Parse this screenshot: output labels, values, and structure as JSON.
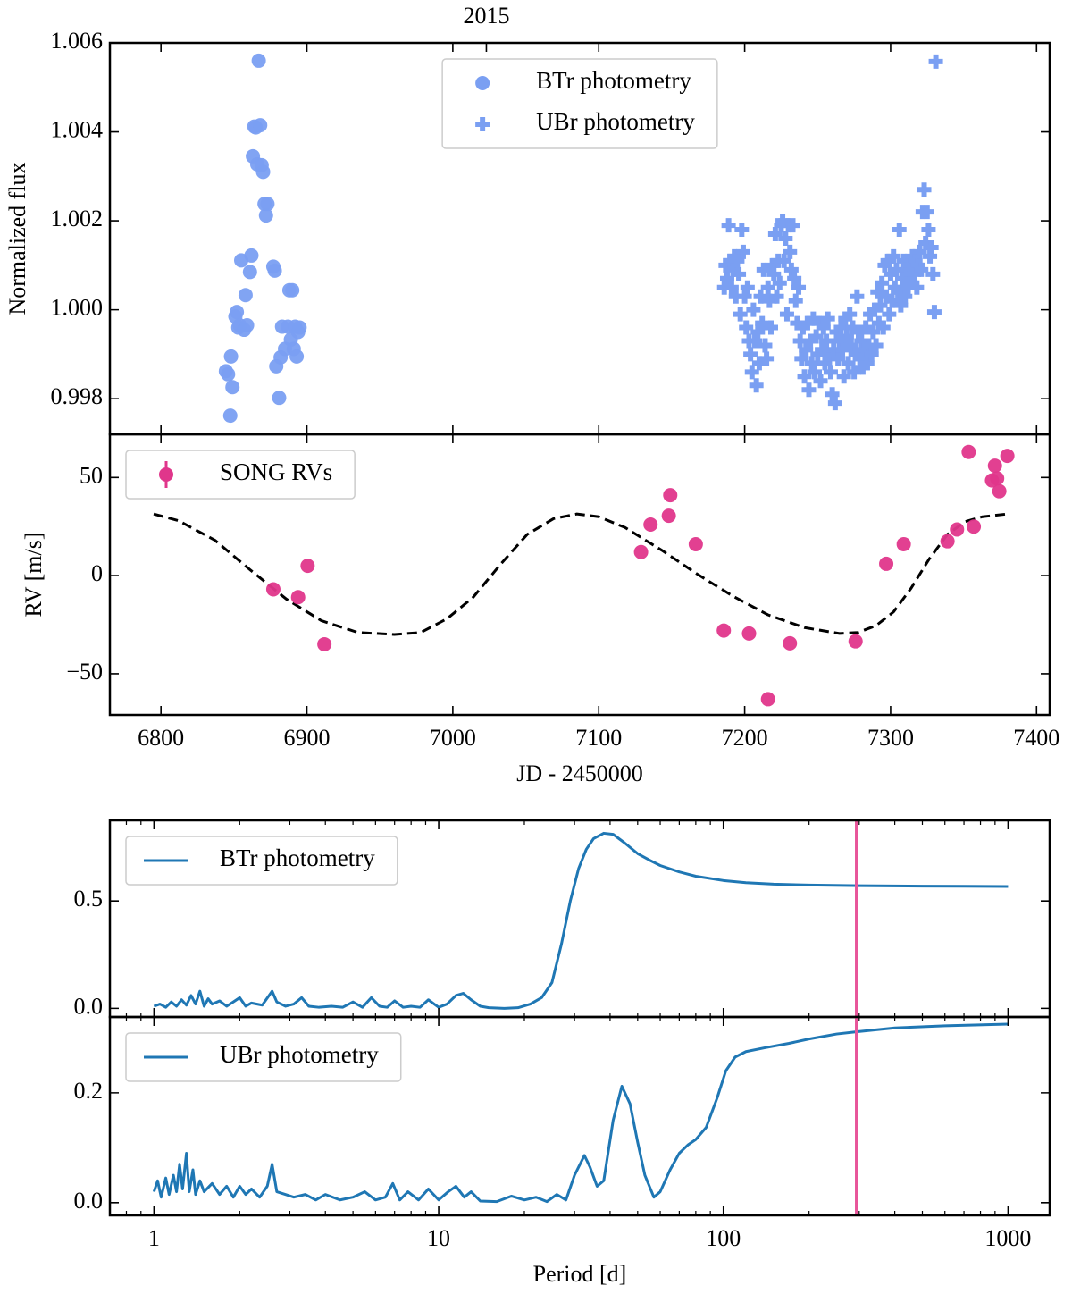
{
  "chart_data": [
    {
      "type": "scatter",
      "xlim": [
        6765,
        7409
      ],
      "ylim": [
        0.9972,
        1.006
      ],
      "xticks": [
        6800,
        6900,
        7000,
        7100,
        7200,
        7300,
        7400
      ],
      "xticklabels": false,
      "x2ticks": [
        {
          "value": 7023,
          "label": "2015"
        }
      ],
      "yticks": [
        1.006,
        1.004,
        1.002,
        {
          "value": 1,
          "label": "1.000"
        },
        0.998
      ],
      "ylabel": "Normalized flux",
      "legend": "upper center",
      "series": [
        {
          "name": "BTr photometry",
          "color": "#7a9ff2",
          "marker": "o",
          "x": [
            6844.5,
            6846,
            6847.5,
            6848,
            6849,
            6851,
            6852,
            6853,
            6854,
            6855,
            6857,
            6858,
            6859,
            6861,
            6862,
            6863,
            6864,
            6865,
            6866,
            6867,
            6868,
            6869,
            6870,
            6871,
            6872,
            6873,
            6877,
            6878,
            6879,
            6881,
            6882,
            6883,
            6885,
            6887,
            6888,
            6889,
            6890,
            6891,
            6892,
            6893,
            6894,
            6895
          ],
          "values": [
            0.99862,
            0.99855,
            0.99762,
            0.99895,
            0.99826,
            0.99985,
            0.99995,
            0.9996,
            0.99965,
            1.00111,
            0.99955,
            1.00033,
            0.99965,
            1.00085,
            1.00122,
            1.00345,
            1.00412,
            1.0041,
            1.00327,
            1.0056,
            1.00415,
            1.00325,
            1.0031,
            1.00238,
            1.00212,
            1.00238,
            1.00097,
            1.00088,
            0.99873,
            0.99802,
            0.99893,
            0.99962,
            0.99912,
            0.99962,
            1.00044,
            0.99933,
            1.00044,
            0.99912,
            0.99962,
            0.99895,
            0.9995,
            0.9996
          ]
        },
        {
          "name": "UBr photometry",
          "color": "#7a9ff2",
          "marker": "P",
          "x": [
            7186,
            7187,
            7188,
            7189,
            7190,
            7191,
            7192,
            7193,
            7194,
            7195,
            7196,
            7197,
            7198,
            7199,
            7200,
            7201,
            7202,
            7203,
            7204,
            7205,
            7206,
            7207,
            7208,
            7209,
            7210,
            7211,
            7212,
            7213,
            7214,
            7215,
            7216,
            7217,
            7218,
            7219,
            7220,
            7221,
            7222,
            7223,
            7224,
            7225,
            7226,
            7227,
            7228,
            7229,
            7230,
            7231,
            7232,
            7233,
            7234,
            7235,
            7236,
            7237,
            7238,
            7239,
            7240,
            7241,
            7242,
            7243,
            7244,
            7245,
            7246,
            7247,
            7248,
            7249,
            7250,
            7251,
            7252,
            7253,
            7254,
            7255,
            7256,
            7257,
            7258,
            7259,
            7260,
            7261,
            7262,
            7263,
            7264,
            7265,
            7266,
            7267,
            7268,
            7269,
            7270,
            7271,
            7272,
            7273,
            7274,
            7275,
            7276,
            7277,
            7278,
            7279,
            7280,
            7281,
            7282,
            7283,
            7284,
            7285,
            7286,
            7287,
            7288,
            7289,
            7290,
            7291,
            7292,
            7293,
            7294,
            7295,
            7296,
            7297,
            7298,
            7299,
            7300,
            7301,
            7302,
            7303,
            7304,
            7305,
            7306,
            7307,
            7308,
            7309,
            7310,
            7311,
            7312,
            7313,
            7314,
            7315,
            7316,
            7317,
            7318,
            7319,
            7320,
            7321,
            7322,
            7323,
            7324,
            7325,
            7326,
            7327,
            7328,
            7329,
            7330,
            7331
          ],
          "values": [
            1.0005,
            1.001,
            1.0007,
            1.0019,
            1.0011,
            1.0005,
            1.0009,
            1.0012,
            1.0003,
            1.0011,
            1.0008,
            0.9999,
            1.0018,
            1.0013,
            1.0003,
            0.9996,
            1.0005,
            0.9993,
            0.999,
            0.9986,
            1.0,
            0.9993,
            0.9983,
            0.9995,
            0.9988,
            1.0003,
            0.9997,
            1.0009,
            0.9992,
            0.9989,
            1.0005,
            1.0002,
            0.9996,
            1.001,
            1.0008,
            1.0017,
            1.0003,
            1.0011,
            1.0006,
            1.0019,
            1.002,
            1.0011,
            1.0016,
            0.9999,
            1.0019,
            1.0013,
            1.0009,
            1.0019,
            1.0007,
            1.0002,
            0.9997,
            1.0005,
            0.9993,
            0.9989,
            0.9996,
            0.9985,
            0.9991,
            0.9997,
            0.9982,
            0.9993,
            0.9988,
            0.9998,
            0.9986,
            0.9994,
            0.999,
            0.9997,
            0.9984,
            0.9991,
            0.9996,
            0.9988,
            0.9993,
            0.9998,
            0.999,
            0.9986,
            0.9981,
            0.9991,
            0.9979,
            0.9995,
            0.9989,
            0.9993,
            0.9996,
            0.9991,
            0.9985,
            0.9998,
            0.9994,
            0.9988,
            0.9999,
            0.9992,
            0.9996,
            0.9986,
            0.999,
            1.0003,
            0.9995,
            0.9989,
            0.9993,
            0.9987,
            0.9991,
            0.9996,
            0.9988,
            0.9992,
            0.9999,
            0.999,
            0.9995,
            1.0,
            0.9992,
            1.0004,
            0.9997,
            1.0001,
            1.0006,
            0.9996,
            1.001,
            1.0003,
            1.0011,
            0.9999,
            1.0008,
            1.0002,
            1.0012,
            1.0005,
            1.0009,
            1.0004,
            1.0018,
            1.0001,
            1.0007,
            1.0011,
            1.0003,
            1.0009,
            1.0005,
            1.001,
            1.0006,
            1.0012,
            1.0008,
            1.0011,
            1.0005,
            1.001,
            1.0013,
            1.0009,
            1.0022,
            1.0027,
            1.0015,
            1.0022,
            1.0018,
            1.0012,
            1.0014,
            1.0008,
            0.99995,
            1.00558
          ]
        }
      ]
    },
    {
      "type": "scatter",
      "xlim": [
        6765,
        7409
      ],
      "ylim": [
        -71,
        72
      ],
      "xticks": [
        6800,
        6900,
        7000,
        7100,
        7200,
        7300,
        7400
      ],
      "yticks": [
        50,
        0,
        {
          "value": -50,
          "label": "−50"
        }
      ],
      "ylabel": "RV [m/s]",
      "xlabel": "JD - 2450000",
      "legend": "upper left",
      "series": [
        {
          "color": "#000000",
          "marker": "dashed",
          "x": [
            6795,
            6812,
            6837,
            6861,
            6886,
            6910,
            6935,
            6960,
            6978,
            6996,
            7014,
            7033,
            7051,
            7069,
            7085,
            7100,
            7118,
            7143,
            7167,
            7192,
            7216,
            7241,
            7265,
            7277.5,
            7290,
            7302,
            7314,
            7326.5,
            7339,
            7351,
            7363,
            7380
          ],
          "values": [
            31.4,
            28,
            18,
            3,
            -12,
            -23,
            -29,
            -30,
            -29,
            -22,
            -11,
            6,
            21,
            29,
            31.4,
            30,
            24.5,
            13,
            1,
            -10.5,
            -20,
            -26.5,
            -29.5,
            -29,
            -25.5,
            -18.5,
            -6.5,
            8.5,
            21,
            27.5,
            30,
            31.4
          ]
        },
        {
          "name": "SONG RVs",
          "color": "#e0368b",
          "marker": "o",
          "legend_errorbar": true,
          "x": [
            6877,
            6894,
            6900.5,
            6912,
            7129,
            7135.5,
            7148,
            7149,
            7166.5,
            7185.7,
            7203,
            7216,
            7231,
            7276,
            7297,
            7309,
            7339,
            7345.5,
            7357,
            7353.5,
            7371.5,
            7369.5,
            7373,
            7374.5,
            7380
          ],
          "values": [
            -7,
            -11,
            5,
            -35,
            12,
            26,
            30.5,
            41,
            16,
            -28,
            -29.5,
            -63,
            -34.5,
            -33.5,
            6,
            16,
            17.5,
            23.5,
            25,
            63,
            56,
            48.5,
            49.5,
            43,
            61
          ]
        }
      ]
    },
    {
      "type": "line",
      "xlog": true,
      "xlim": [
        0.7,
        1400
      ],
      "ylim": [
        -0.04,
        0.875
      ],
      "xticks": [
        1,
        10,
        100,
        1000
      ],
      "xticklabels": false,
      "xminor": [
        0.8,
        0.9,
        2,
        3,
        4,
        5,
        6,
        7,
        8,
        9,
        20,
        30,
        40,
        50,
        60,
        70,
        80,
        90,
        200,
        300,
        400,
        500,
        600,
        700,
        800,
        900
      ],
      "yticks": [
        0.5,
        {
          "value": 0,
          "label": "0.0"
        }
      ],
      "legend": "upper left",
      "vline": {
        "x": 293,
        "color": "#e8559a"
      },
      "series": [
        {
          "name": "BTr photometry",
          "color": "#1f77b4",
          "marker": "line",
          "x": [
            1,
            1.05,
            1.1,
            1.15,
            1.2,
            1.25,
            1.3,
            1.35,
            1.4,
            1.45,
            1.5,
            1.55,
            1.6,
            1.7,
            1.8,
            1.9,
            2,
            2.1,
            2.2,
            2.4,
            2.6,
            2.7,
            2.9,
            3.1,
            3.3,
            3.5,
            3.8,
            4.2,
            4.6,
            5,
            5.4,
            5.8,
            6.2,
            6.6,
            7,
            7.5,
            8,
            8.6,
            9.2,
            10,
            10.7,
            11.5,
            12.2,
            13,
            14,
            15,
            17,
            19,
            21,
            23,
            25,
            27,
            29,
            31,
            33,
            35,
            38,
            41,
            45,
            50,
            55,
            60,
            70,
            80,
            100,
            120,
            150,
            200,
            300,
            500,
            700,
            1000
          ],
          "values": [
            0.01,
            0.02,
            0.005,
            0.03,
            0.01,
            0.04,
            0.015,
            0.06,
            0.02,
            0.08,
            0.01,
            0.045,
            0.02,
            0.035,
            0.01,
            0.03,
            0.05,
            0.01,
            0.025,
            0.015,
            0.08,
            0.03,
            0.01,
            0.02,
            0.05,
            0.01,
            0.005,
            0.01,
            0.005,
            0.03,
            0.005,
            0.05,
            0.01,
            0.005,
            0.035,
            0.005,
            0.01,
            0.005,
            0.04,
            0.005,
            0.02,
            0.06,
            0.07,
            0.04,
            0.01,
            0.003,
            0,
            0.003,
            0.02,
            0.05,
            0.12,
            0.3,
            0.5,
            0.65,
            0.74,
            0.79,
            0.815,
            0.81,
            0.77,
            0.72,
            0.69,
            0.665,
            0.635,
            0.615,
            0.595,
            0.585,
            0.578,
            0.574,
            0.571,
            0.569,
            0.568,
            0.567
          ]
        }
      ]
    },
    {
      "type": "line",
      "xlog": true,
      "xlim": [
        0.7,
        1400
      ],
      "ylim": [
        -0.023,
        0.338
      ],
      "xticks": [
        1,
        10,
        100,
        1000
      ],
      "xminor": [
        0.8,
        0.9,
        2,
        3,
        4,
        5,
        6,
        7,
        8,
        9,
        20,
        30,
        40,
        50,
        60,
        70,
        80,
        90,
        200,
        300,
        400,
        500,
        600,
        700,
        800,
        900
      ],
      "yticks": [
        0.2,
        {
          "value": 0,
          "label": "0.0"
        }
      ],
      "xlabel": "Period [d]",
      "legend": "upper left",
      "vline": {
        "x": 293,
        "color": "#e8559a"
      },
      "series": [
        {
          "name": "UBr photometry",
          "color": "#1f77b4",
          "marker": "line",
          "x": [
            1,
            1.03,
            1.06,
            1.1,
            1.13,
            1.17,
            1.2,
            1.23,
            1.26,
            1.3,
            1.33,
            1.37,
            1.4,
            1.45,
            1.5,
            1.6,
            1.7,
            1.8,
            1.9,
            2,
            2.1,
            2.2,
            2.35,
            2.5,
            2.6,
            2.7,
            2.9,
            3.1,
            3.4,
            3.7,
            4,
            4.5,
            5,
            5.5,
            6,
            6.5,
            6.9,
            7.3,
            7.8,
            8.5,
            9.2,
            10,
            10.8,
            11.5,
            12.3,
            13,
            14,
            16,
            18,
            20,
            22,
            24,
            26,
            28,
            30,
            32.5,
            34,
            36,
            38,
            41,
            44,
            47,
            50,
            53,
            57,
            60,
            65,
            70,
            75,
            80,
            87,
            95,
            102,
            110,
            120,
            140,
            170,
            200,
            250,
            293,
            400,
            600,
            1000
          ],
          "values": [
            0.02,
            0.04,
            0.01,
            0.045,
            0.015,
            0.05,
            0.02,
            0.07,
            0.025,
            0.09,
            0.02,
            0.06,
            0.015,
            0.04,
            0.02,
            0.035,
            0.015,
            0.03,
            0.01,
            0.03,
            0.015,
            0.025,
            0.01,
            0.03,
            0.07,
            0.02,
            0.015,
            0.01,
            0.015,
            0.005,
            0.015,
            0.005,
            0.01,
            0.02,
            0.005,
            0.01,
            0.035,
            0.005,
            0.02,
            0.005,
            0.025,
            0.005,
            0.02,
            0.03,
            0.01,
            0.02,
            0.003,
            0.002,
            0.012,
            0.005,
            0.01,
            0.002,
            0.015,
            0.005,
            0.05,
            0.086,
            0.065,
            0.03,
            0.04,
            0.15,
            0.212,
            0.18,
            0.11,
            0.05,
            0.01,
            0.02,
            0.06,
            0.09,
            0.105,
            0.115,
            0.137,
            0.19,
            0.24,
            0.265,
            0.275,
            0.282,
            0.29,
            0.298,
            0.307,
            0.311,
            0.318,
            0.322,
            0.325
          ]
        }
      ]
    }
  ]
}
